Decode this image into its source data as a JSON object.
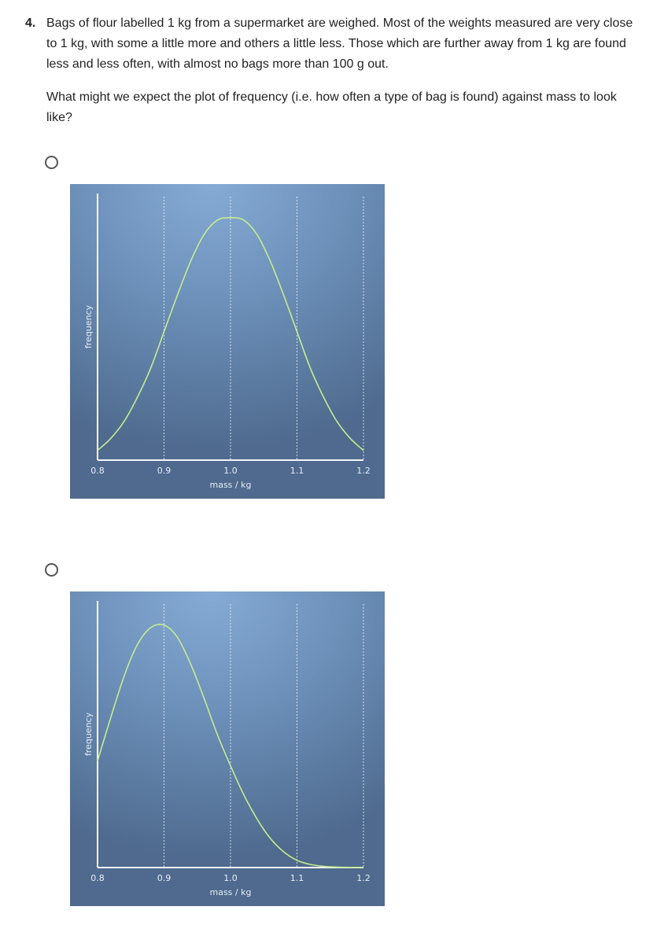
{
  "question": {
    "number": "4.",
    "text": "Bags of flour labelled 1 kg from a supermarket are weighed. Most of the weights measured are very close to 1 kg, with some a little more and others a little less. Those which are further away from 1 kg are found less and less often, with almost no bags more than 100 g out.",
    "prompt": "What might we expect the plot of frequency (i.e. how often a type of bag is found) against mass to look like?"
  },
  "colors": {
    "curve": "#c6ec8e",
    "axis": "#f2f5f9",
    "grid": "#f2f5f9"
  },
  "options": [
    {
      "chart_data": {
        "type": "line",
        "xlabel": "mass / kg",
        "ylabel": "frequency",
        "xlim": [
          0.8,
          1.2
        ],
        "ylim": [
          0,
          1.1
        ],
        "x_ticks": [
          "0.8",
          "0.9",
          "1.0",
          "1.1",
          "1.2"
        ],
        "grid": "vertical-dashed",
        "series": [
          {
            "x": [
              0.8,
              0.82,
              0.84,
              0.86,
              0.88,
              0.9,
              0.92,
              0.94,
              0.96,
              0.98,
              1.0,
              1.02,
              1.04,
              1.06,
              1.08,
              1.1,
              1.12,
              1.14,
              1.16,
              1.18,
              1.2
            ],
            "y": [
              0.04,
              0.09,
              0.16,
              0.26,
              0.38,
              0.53,
              0.68,
              0.82,
              0.93,
              0.99,
              1.0,
              0.99,
              0.93,
              0.82,
              0.68,
              0.53,
              0.38,
              0.26,
              0.16,
              0.09,
              0.04
            ]
          }
        ]
      }
    },
    {
      "chart_data": {
        "type": "line",
        "xlabel": "mass / kg",
        "ylabel": "frequency",
        "xlim": [
          0.8,
          1.2
        ],
        "ylim": [
          0,
          1.1
        ],
        "x_ticks": [
          "0.8",
          "0.9",
          "1.0",
          "1.1",
          "1.2"
        ],
        "grid": "vertical-dashed",
        "series": [
          {
            "x": [
              0.8,
              0.82,
              0.84,
              0.86,
              0.88,
              0.9,
              0.92,
              0.94,
              0.96,
              0.98,
              1.0,
              1.02,
              1.04,
              1.06,
              1.08,
              1.1,
              1.12,
              1.14,
              1.16,
              1.18,
              1.2
            ],
            "y": [
              0.44,
              0.62,
              0.79,
              0.92,
              0.99,
              1.0,
              0.95,
              0.84,
              0.7,
              0.55,
              0.42,
              0.3,
              0.2,
              0.12,
              0.065,
              0.03,
              0.013,
              0.005,
              0.002,
              0.0005,
              0.0
            ]
          }
        ]
      }
    }
  ]
}
